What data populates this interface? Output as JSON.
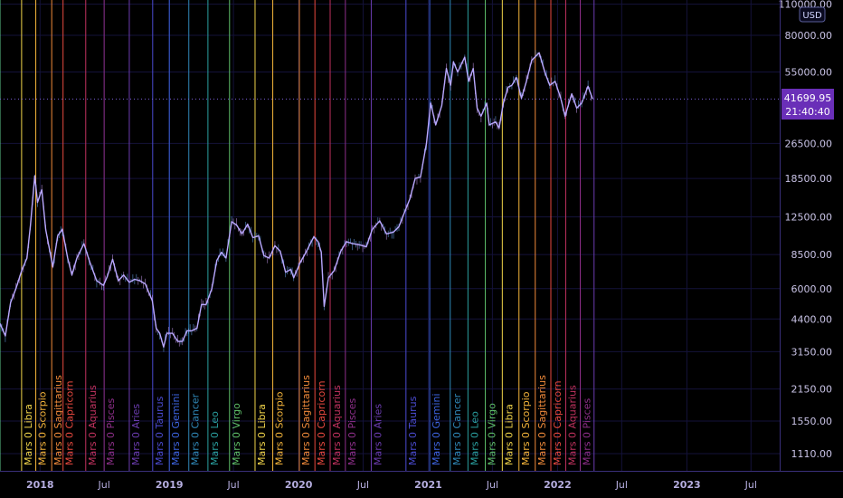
{
  "currency": "USD",
  "last_price": "41699.95",
  "countdown": "21:40:40",
  "colors": {
    "background": "#000000",
    "grid": "#14123a",
    "axis_line": "#3a2f7a",
    "price_tag": "#6a2fb8",
    "candle_up": "#6fb1ff",
    "candle_down": "#d3a4ff"
  },
  "chart_data": {
    "type": "line",
    "y_scale": "log",
    "ylim": [
      1000,
      110000
    ],
    "y_ticks": [
      {
        "value": 110000,
        "label": "110000.00"
      },
      {
        "value": 80000,
        "label": "80000.00"
      },
      {
        "value": 55000,
        "label": "55000.00"
      },
      {
        "value": 26500,
        "label": "26500.00"
      },
      {
        "value": 18500,
        "label": "18500.00"
      },
      {
        "value": 12500,
        "label": "12500.00"
      },
      {
        "value": 8500,
        "label": "8500.00"
      },
      {
        "value": 6000,
        "label": "6000.00"
      },
      {
        "value": 4400,
        "label": "4400.00"
      },
      {
        "value": 3150,
        "label": "3150.00"
      },
      {
        "value": 2150,
        "label": "2150.00"
      },
      {
        "value": 1550,
        "label": "1550.00"
      },
      {
        "value": 1110,
        "label": "1110.00"
      }
    ],
    "xlim": [
      "2017-09-10",
      "2023-09-20"
    ],
    "x_ticks": [
      {
        "date": "2018-01-01",
        "label": "2018",
        "major": true
      },
      {
        "date": "2018-07-01",
        "label": "Jul",
        "major": false
      },
      {
        "date": "2019-01-01",
        "label": "2019",
        "major": true
      },
      {
        "date": "2019-07-01",
        "label": "Jul",
        "major": false
      },
      {
        "date": "2020-01-01",
        "label": "2020",
        "major": true
      },
      {
        "date": "2020-07-01",
        "label": "Jul",
        "major": false
      },
      {
        "date": "2021-01-01",
        "label": "2021",
        "major": true
      },
      {
        "date": "2021-07-01",
        "label": "Jul",
        "major": false
      },
      {
        "date": "2022-01-01",
        "label": "2022",
        "major": true
      },
      {
        "date": "2022-07-01",
        "label": "Jul",
        "major": false
      },
      {
        "date": "2023-01-01",
        "label": "2023",
        "major": true
      },
      {
        "date": "2023-07-01",
        "label": "Jul",
        "major": false
      }
    ],
    "vertical_markers": [
      {
        "date": "2017-09-10",
        "label": "",
        "color": "#5dc58a"
      },
      {
        "date": "2017-11-10",
        "label": "Mars 0 Libra",
        "color": "#f0d44a"
      },
      {
        "date": "2017-12-20",
        "label": "Mars 0 Scorpio",
        "color": "#f5b53b"
      },
      {
        "date": "2018-02-03",
        "label": "Mars 0 Sagittarius",
        "color": "#f08a3a"
      },
      {
        "date": "2018-03-07",
        "label": "Mars 0 Capricorn",
        "color": "#e8493f"
      },
      {
        "date": "2018-05-10",
        "label": "Mars 0 Aquarius",
        "color": "#c1325f"
      },
      {
        "date": "2018-07-01",
        "label": "Mars 0 Pisces",
        "color": "#8e2f8a"
      },
      {
        "date": "2018-09-10",
        "label": "Mars 0 Aries",
        "color": "#6b3cb0"
      },
      {
        "date": "2018-11-15",
        "label": "Mars 0 Taurus",
        "color": "#4a4bd0"
      },
      {
        "date": "2019-01-01",
        "label": "Mars 0 Gemini",
        "color": "#3d63e0"
      },
      {
        "date": "2019-02-25",
        "label": "Mars 0 Cancer",
        "color": "#2f88b8"
      },
      {
        "date": "2019-04-20",
        "label": "Mars 0 Leo",
        "color": "#2aa0a0"
      },
      {
        "date": "2019-06-20",
        "label": "Mars 0 Virgo",
        "color": "#5fbf6a"
      },
      {
        "date": "2019-08-31",
        "label": "Mars 0 Libra",
        "color": "#f0d44a"
      },
      {
        "date": "2019-10-20",
        "label": "Mars 0 Scorpio",
        "color": "#f5b53b"
      },
      {
        "date": "2020-01-03",
        "label": "Mars 0 Sagittarius",
        "color": "#f08a3a"
      },
      {
        "date": "2020-02-16",
        "label": "Mars 0 Capricorn",
        "color": "#e8493f"
      },
      {
        "date": "2020-03-30",
        "label": "Mars 0 Aquarius",
        "color": "#c1325f"
      },
      {
        "date": "2020-05-12",
        "label": "Mars 0 Pisces",
        "color": "#8e2f8a"
      },
      {
        "date": "2020-07-24",
        "label": "Mars 0 Aries",
        "color": "#6b3cb0"
      },
      {
        "date": "2020-10-30",
        "label": "Mars 0 Taurus",
        "color": "#4a4bd0"
      },
      {
        "date": "2021-01-05",
        "label": "Mars 0 Gemini",
        "color": "#3d63e0"
      },
      {
        "date": "2021-03-04",
        "label": "Mars 0 Cancer",
        "color": "#2f88b8"
      },
      {
        "date": "2021-04-23",
        "label": "Mars 0 Leo",
        "color": "#2aa0a0"
      },
      {
        "date": "2021-06-11",
        "label": "Mars 0 Virgo",
        "color": "#5fbf6a"
      },
      {
        "date": "2021-07-29",
        "label": "Mars 0 Libra",
        "color": "#f0d44a"
      },
      {
        "date": "2021-09-14",
        "label": "Mars 0 Scorpio",
        "color": "#f5b53b"
      },
      {
        "date": "2021-10-30",
        "label": "Mars 0 Sagittarius",
        "color": "#f08a3a"
      },
      {
        "date": "2021-12-13",
        "label": "Mars 0 Capricorn",
        "color": "#e8493f"
      },
      {
        "date": "2022-01-24",
        "label": "Mars 0 Aquarius",
        "color": "#c1325f"
      },
      {
        "date": "2022-03-06",
        "label": "Mars 0 Pisces",
        "color": "#8e2f8a"
      },
      {
        "date": "2022-04-14",
        "label": "",
        "color": "#6b3cb0"
      }
    ],
    "series": [
      {
        "x": [
          "2017-09-10",
          "2017-09-25",
          "2017-10-10",
          "2017-10-25",
          "2017-11-10",
          "2017-11-25",
          "2017-12-05",
          "2017-12-17",
          "2017-12-25",
          "2018-01-06",
          "2018-01-17",
          "2018-02-06",
          "2018-02-20",
          "2018-03-05",
          "2018-03-20",
          "2018-04-01",
          "2018-04-15",
          "2018-05-05",
          "2018-05-20",
          "2018-06-10",
          "2018-06-29",
          "2018-07-10",
          "2018-07-25",
          "2018-08-10",
          "2018-08-25",
          "2018-09-10",
          "2018-09-25",
          "2018-10-10",
          "2018-10-25",
          "2018-11-14",
          "2018-11-25",
          "2018-12-05",
          "2018-12-16",
          "2018-12-25",
          "2019-01-10",
          "2019-01-25",
          "2019-02-07",
          "2019-02-20",
          "2019-03-05",
          "2019-03-20",
          "2019-04-02",
          "2019-04-15",
          "2019-05-01",
          "2019-05-15",
          "2019-05-28",
          "2019-06-10",
          "2019-06-26",
          "2019-07-10",
          "2019-07-25",
          "2019-08-10",
          "2019-08-25",
          "2019-09-10",
          "2019-09-25",
          "2019-10-10",
          "2019-10-26",
          "2019-11-10",
          "2019-11-25",
          "2019-12-10",
          "2019-12-18",
          "2020-01-05",
          "2020-01-20",
          "2020-02-13",
          "2020-02-25",
          "2020-03-05",
          "2020-03-13",
          "2020-03-25",
          "2020-04-10",
          "2020-04-29",
          "2020-05-15",
          "2020-06-01",
          "2020-06-20",
          "2020-07-10",
          "2020-07-27",
          "2020-08-17",
          "2020-09-05",
          "2020-09-25",
          "2020-10-10",
          "2020-10-25",
          "2020-11-10",
          "2020-11-25",
          "2020-12-10",
          "2020-12-27",
          "2021-01-08",
          "2021-01-22",
          "2021-02-08",
          "2021-02-21",
          "2021-03-05",
          "2021-03-13",
          "2021-03-25",
          "2021-04-14",
          "2021-04-25",
          "2021-05-08",
          "2021-05-19",
          "2021-05-30",
          "2021-06-15",
          "2021-06-22",
          "2021-07-10",
          "2021-07-20",
          "2021-08-01",
          "2021-08-14",
          "2021-08-25",
          "2021-09-07",
          "2021-09-21",
          "2021-10-05",
          "2021-10-20",
          "2021-11-10",
          "2021-11-26",
          "2021-12-10",
          "2021-12-25",
          "2022-01-10",
          "2022-01-22",
          "2022-02-10",
          "2022-02-24",
          "2022-03-10",
          "2022-03-28",
          "2022-04-10"
        ],
        "y": [
          4200,
          3700,
          5200,
          6000,
          7200,
          8200,
          11500,
          19000,
          14500,
          16500,
          11000,
          7500,
          10300,
          11000,
          8200,
          6900,
          8200,
          9500,
          8000,
          6500,
          6200,
          6800,
          8100,
          6500,
          6900,
          6400,
          6600,
          6500,
          6300,
          5300,
          4000,
          3800,
          3300,
          3800,
          3800,
          3500,
          3500,
          3900,
          3900,
          4000,
          5100,
          5100,
          6000,
          8000,
          8700,
          8200,
          11900,
          11500,
          10500,
          11600,
          10100,
          10300,
          8400,
          8200,
          9300,
          8800,
          7100,
          7300,
          6700,
          7800,
          8600,
          10200,
          9700,
          8700,
          5000,
          6700,
          7200,
          8800,
          9700,
          9500,
          9400,
          9200,
          11000,
          12000,
          10500,
          10700,
          11300,
          13000,
          15000,
          18500,
          18800,
          26500,
          40000,
          32000,
          39000,
          57000,
          48000,
          61000,
          55000,
          64000,
          50000,
          57000,
          38000,
          35000,
          40000,
          32000,
          33000,
          31000,
          40000,
          47000,
          48000,
          52000,
          42000,
          50000,
          62000,
          67000,
          55000,
          48000,
          50000,
          42000,
          35000,
          44000,
          38000,
          40000,
          47500,
          41700
        ]
      }
    ]
  }
}
